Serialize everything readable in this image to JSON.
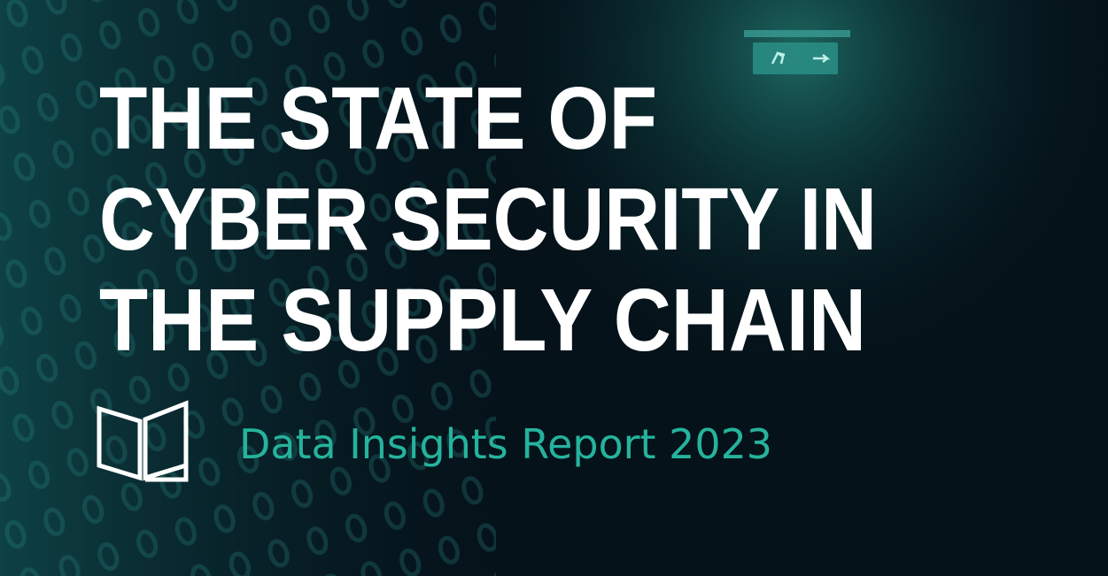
{
  "title": [
    "THE STATE OF",
    "CYBER SECURITY IN",
    "THE SUPPLY CHAIN"
  ],
  "subtitle": "Data Insights Report 2023"
}
